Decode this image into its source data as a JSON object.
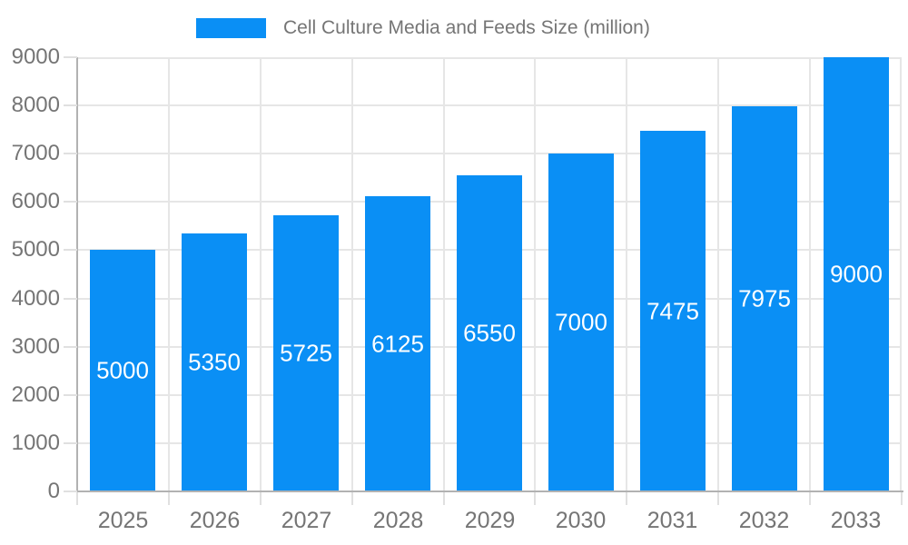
{
  "legend": {
    "label": "Cell Culture Media and Feeds Size (million)"
  },
  "chart_data": {
    "type": "bar",
    "title": "Cell Culture Media and Feeds Size (million)",
    "categories": [
      "2025",
      "2026",
      "2027",
      "2028",
      "2029",
      "2030",
      "2031",
      "2032",
      "2033"
    ],
    "values": [
      5000,
      5350,
      5725,
      6125,
      6550,
      7000,
      7475,
      7975,
      9000
    ],
    "xlabel": "",
    "ylabel": "",
    "ylim": [
      0,
      9000
    ],
    "ytick_step": 1000,
    "yticks": [
      0,
      1000,
      2000,
      3000,
      4000,
      5000,
      6000,
      7000,
      8000,
      9000
    ],
    "grid": true,
    "legend_position": "top-center",
    "bar_color": "#0a8ff5",
    "bar_label_color": "#ffffff",
    "axis_text_color": "#757575",
    "grid_color": "#e6e6e6",
    "tick_color": "#e0e0e0",
    "axis_line_color": "#b2b2b2",
    "background_color": "#ffffff"
  }
}
